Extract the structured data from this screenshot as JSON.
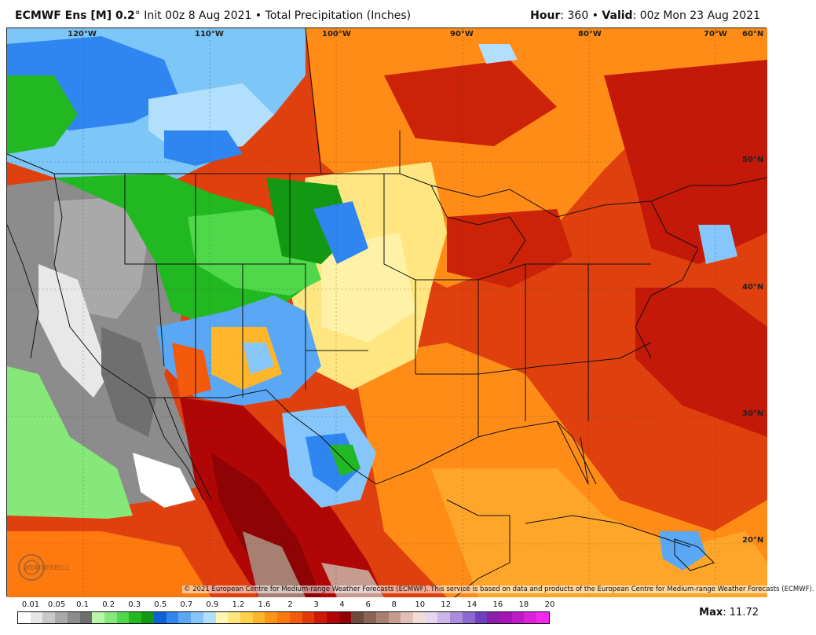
{
  "header": {
    "model": "ECMWF Ens [M] 0.2",
    "degree": "°",
    "init": "Init 00z 8 Aug 2021",
    "bullet": "•",
    "product": "Total Precipitation (Inches)",
    "hour_label": "Hour",
    "hour_value": ": 360",
    "valid_label": "Valid",
    "valid_value": ": 00z Mon 23 Aug 2021"
  },
  "map": {
    "longitude_labels": [
      "120°W",
      "110°W",
      "100°W",
      "90°W",
      "80°W",
      "70°W",
      "60°N"
    ],
    "latitude_labels": [
      "50°N",
      "40°N",
      "30°N",
      "20°N"
    ],
    "copyright": "© 2021 European Centre for Medium-range Weather Forecasts (ECMWF). This service is based on data and products of the European Centre for Medium-range Weather Forecasts (ECMWF).",
    "watermark": "WeatherBELL"
  },
  "legend": {
    "labels": [
      "0.01",
      "0.05",
      "0.1",
      "0.2",
      "0.3",
      "0.5",
      "0.7",
      "0.9",
      "1.2",
      "1.6",
      "2",
      "3",
      "4",
      "6",
      "8",
      "10",
      "12",
      "14",
      "16",
      "18",
      "20"
    ],
    "colors": [
      "#ffffff",
      "#e6e6e6",
      "#c8c8c8",
      "#a9a9a9",
      "#8c8c8c",
      "#6f6f6f",
      "#b8f5a8",
      "#86e878",
      "#4ed84a",
      "#22b822",
      "#129812",
      "#0f5fd6",
      "#2f86f0",
      "#5aa8f5",
      "#86c6fa",
      "#b2dffb",
      "#fff5b5",
      "#ffe680",
      "#ffd24a",
      "#ffb62b",
      "#ff9518",
      "#ff7a0e",
      "#f45a0c",
      "#e23b0a",
      "#cc1a08",
      "#b10606",
      "#8e0303",
      "#6e4a3c",
      "#8a6455",
      "#a88072",
      "#c59c8e",
      "#e2bfb4",
      "#f2dcd6",
      "#e6d6ef",
      "#cbb6e6",
      "#a98ddb",
      "#8b6acf",
      "#7040be",
      "#8a1fa8",
      "#a515b5",
      "#c01ac6",
      "#dd22dc",
      "#f228f0"
    ],
    "max_label": "Max",
    "max_value": ": 11.72"
  }
}
